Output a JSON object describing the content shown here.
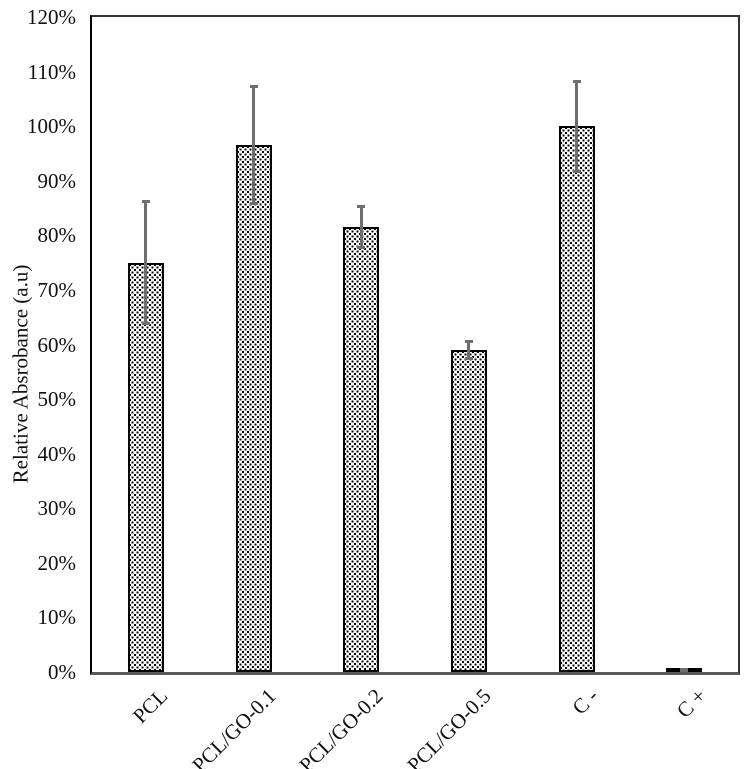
{
  "chart_data": {
    "type": "bar",
    "title": "",
    "xlabel": "",
    "ylabel": "Relative Absrobance (a.u)",
    "categories": [
      "PCL",
      "PCL/GO-0.1",
      "PCL/GO-0.2",
      "PCL/GO-0.5",
      "C -",
      "C +"
    ],
    "values": [
      75,
      96.5,
      81.5,
      59,
      100,
      0.4
    ],
    "error_bars": [
      11.5,
      11,
      4,
      1.75,
      8.5,
      0.4
    ],
    "ylim": [
      0,
      120
    ],
    "ytick_step": 10,
    "ytick_labels": [
      "0%",
      "10%",
      "20%",
      "30%",
      "40%",
      "50%",
      "60%",
      "70%",
      "80%",
      "90%",
      "100%",
      "110%",
      "120%"
    ],
    "grid": false,
    "legend": null,
    "bar_fill_style": "stipple-dots",
    "colors": {
      "bar_background": "#ffffff",
      "bar_dot": "#000000",
      "bar_border": "#000000",
      "error_bar": "#6e6e6e",
      "axis_left": "#000000",
      "axis_bottom": "#595959",
      "plot_border": "#333333",
      "text": "#111111"
    }
  }
}
